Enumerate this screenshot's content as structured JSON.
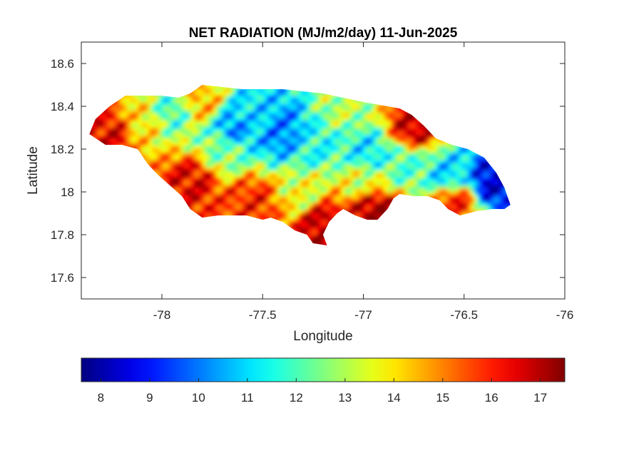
{
  "chart_data": {
    "type": "heatmap",
    "title": "NET RADIATION (MJ/m2/day) 11-Jun-2025",
    "xlabel": "Longitude",
    "ylabel": "Latitude",
    "xlim": [
      -78.4,
      -76
    ],
    "ylim": [
      17.5,
      18.7
    ],
    "x_ticks": [
      -78,
      -77.5,
      -77,
      -76.5,
      -76
    ],
    "x_tick_labels": [
      "-78",
      "-77.5",
      "-77",
      "-76.5",
      "-76"
    ],
    "y_ticks": [
      17.6,
      17.8,
      18,
      18.2,
      18.4,
      18.6
    ],
    "y_tick_labels": [
      "17.6",
      "17.8",
      "18",
      "18.2",
      "18.4",
      "18.6"
    ],
    "grid": false,
    "colormap": "jet",
    "colorbar": {
      "orientation": "horizontal",
      "location": "below",
      "range": [
        7.6,
        17.5
      ],
      "ticks": [
        8,
        9,
        10,
        11,
        12,
        13,
        14,
        15,
        16,
        17
      ],
      "tick_labels": [
        "8",
        "9",
        "10",
        "11",
        "12",
        "13",
        "14",
        "15",
        "16",
        "17"
      ]
    },
    "boundary_lonlat": [
      [
        -78.36,
        18.27
      ],
      [
        -78.33,
        18.34
      ],
      [
        -78.26,
        18.4
      ],
      [
        -78.18,
        18.45
      ],
      [
        -78.1,
        18.45
      ],
      [
        -78.0,
        18.45
      ],
      [
        -77.92,
        18.44
      ],
      [
        -77.86,
        18.46
      ],
      [
        -77.8,
        18.5
      ],
      [
        -77.7,
        18.49
      ],
      [
        -77.6,
        18.48
      ],
      [
        -77.5,
        18.48
      ],
      [
        -77.4,
        18.48
      ],
      [
        -77.3,
        18.47
      ],
      [
        -77.2,
        18.46
      ],
      [
        -77.1,
        18.44
      ],
      [
        -77.0,
        18.42
      ],
      [
        -76.94,
        18.41
      ],
      [
        -76.88,
        18.4
      ],
      [
        -76.82,
        18.39
      ],
      [
        -76.76,
        18.36
      ],
      [
        -76.7,
        18.31
      ],
      [
        -76.64,
        18.25
      ],
      [
        -76.56,
        18.22
      ],
      [
        -76.48,
        18.2
      ],
      [
        -76.4,
        18.16
      ],
      [
        -76.34,
        18.09
      ],
      [
        -76.3,
        18.02
      ],
      [
        -76.27,
        17.94
      ],
      [
        -76.3,
        17.92
      ],
      [
        -76.36,
        17.92
      ],
      [
        -76.44,
        17.91
      ],
      [
        -76.52,
        17.89
      ],
      [
        -76.58,
        17.92
      ],
      [
        -76.62,
        17.96
      ],
      [
        -76.68,
        17.98
      ],
      [
        -76.75,
        17.98
      ],
      [
        -76.82,
        17.99
      ],
      [
        -76.85,
        17.97
      ],
      [
        -76.88,
        17.92
      ],
      [
        -76.93,
        17.87
      ],
      [
        -76.98,
        17.87
      ],
      [
        -77.04,
        17.89
      ],
      [
        -77.1,
        17.92
      ],
      [
        -77.13,
        17.9
      ],
      [
        -77.17,
        17.86
      ],
      [
        -77.2,
        17.8
      ],
      [
        -77.18,
        17.75
      ],
      [
        -77.25,
        17.76
      ],
      [
        -77.28,
        17.8
      ],
      [
        -77.34,
        17.82
      ],
      [
        -77.4,
        17.86
      ],
      [
        -77.46,
        17.88
      ],
      [
        -77.5,
        17.87
      ],
      [
        -77.58,
        17.89
      ],
      [
        -77.64,
        17.89
      ],
      [
        -77.72,
        17.89
      ],
      [
        -77.8,
        17.88
      ],
      [
        -77.86,
        17.92
      ],
      [
        -77.9,
        17.98
      ],
      [
        -77.96,
        18.03
      ],
      [
        -78.02,
        18.08
      ],
      [
        -78.07,
        18.13
      ],
      [
        -78.12,
        18.2
      ],
      [
        -78.2,
        18.22
      ],
      [
        -78.28,
        18.22
      ],
      [
        -78.36,
        18.27
      ]
    ],
    "values_note_free": true,
    "value_centers": [
      {
        "lon": -77.65,
        "lat": 18.3,
        "value": 10.2
      },
      {
        "lon": -77.4,
        "lat": 18.28,
        "value": 10.0
      },
      {
        "lon": -77.55,
        "lat": 18.36,
        "value": 11.0
      },
      {
        "lon": -77.25,
        "lat": 18.22,
        "value": 11.5
      },
      {
        "lon": -76.98,
        "lat": 18.18,
        "value": 11.2
      },
      {
        "lon": -76.8,
        "lat": 18.13,
        "value": 12.0
      },
      {
        "lon": -76.58,
        "lat": 18.08,
        "value": 11.0
      },
      {
        "lon": -76.36,
        "lat": 18.05,
        "value": 8.5
      },
      {
        "lon": -77.95,
        "lat": 18.38,
        "value": 12.0
      },
      {
        "lon": -78.1,
        "lat": 18.32,
        "value": 14.0
      },
      {
        "lon": -77.7,
        "lat": 18.2,
        "value": 12.5
      },
      {
        "lon": -77.3,
        "lat": 18.0,
        "value": 13.5
      },
      {
        "lon": -77.0,
        "lat": 18.05,
        "value": 13.5
      },
      {
        "lon": -77.85,
        "lat": 18.05,
        "value": 16.5
      },
      {
        "lon": -77.55,
        "lat": 17.95,
        "value": 16.0
      },
      {
        "lon": -77.2,
        "lat": 17.85,
        "value": 17.0
      },
      {
        "lon": -76.95,
        "lat": 17.92,
        "value": 17.2
      },
      {
        "lon": -76.75,
        "lat": 18.3,
        "value": 16.8
      },
      {
        "lon": -76.55,
        "lat": 17.95,
        "value": 16.0
      },
      {
        "lon": -78.25,
        "lat": 18.27,
        "value": 16.5
      },
      {
        "lon": -77.8,
        "lat": 18.42,
        "value": 14.5
      },
      {
        "lon": -77.1,
        "lat": 18.4,
        "value": 13.0
      }
    ]
  }
}
